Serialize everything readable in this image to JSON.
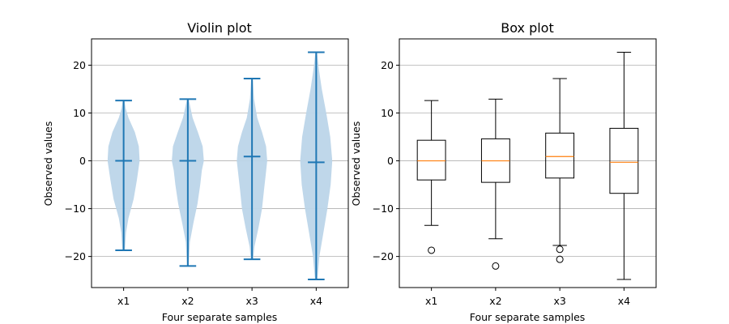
{
  "chart_data": [
    {
      "type": "violin",
      "title": "Violin plot",
      "xlabel": "Four separate samples",
      "ylabel": "Observed values",
      "categories": [
        "x1",
        "x2",
        "x3",
        "x4"
      ],
      "ylim": [
        -26.5,
        25.5
      ],
      "yticks": [
        -20,
        -10,
        0,
        10,
        20
      ],
      "ytick_labels": [
        "−20",
        "−10",
        "0",
        "10",
        "20"
      ],
      "grid": "y",
      "color": "#1f77b4",
      "body_color": "#bcd5e9",
      "series": [
        {
          "category": "x1",
          "min": -18.7,
          "max": 12.6,
          "median": 0.0,
          "density": [
            [
              -18.7,
              0.03
            ],
            [
              -15,
              0.06
            ],
            [
              -12,
              0.12
            ],
            [
              -8,
              0.25
            ],
            [
              -4,
              0.33
            ],
            [
              0,
              0.4
            ],
            [
              3,
              0.38
            ],
            [
              6,
              0.28
            ],
            [
              9,
              0.12
            ],
            [
              11,
              0.05
            ],
            [
              12.6,
              0.02
            ]
          ]
        },
        {
          "category": "x2",
          "min": -22.0,
          "max": 12.9,
          "median": 0.0,
          "density": [
            [
              -22,
              0.02
            ],
            [
              -17,
              0.05
            ],
            [
              -13,
              0.14
            ],
            [
              -9,
              0.24
            ],
            [
              -5,
              0.31
            ],
            [
              -2,
              0.35
            ],
            [
              0,
              0.4
            ],
            [
              3,
              0.37
            ],
            [
              6,
              0.25
            ],
            [
              9,
              0.12
            ],
            [
              12.9,
              0.02
            ]
          ]
        },
        {
          "category": "x3",
          "min": -20.6,
          "max": 17.2,
          "median": 0.9,
          "density": [
            [
              -20.6,
              0.03
            ],
            [
              -18,
              0.06
            ],
            [
              -14,
              0.16
            ],
            [
              -10,
              0.25
            ],
            [
              -6,
              0.3
            ],
            [
              -3,
              0.34
            ],
            [
              0,
              0.38
            ],
            [
              3,
              0.35
            ],
            [
              6,
              0.25
            ],
            [
              9,
              0.13
            ],
            [
              13,
              0.05
            ],
            [
              17.2,
              0.02
            ]
          ]
        },
        {
          "category": "x4",
          "min": -24.8,
          "max": 22.7,
          "median": -0.3,
          "density": [
            [
              -24.8,
              0.03
            ],
            [
              -20,
              0.08
            ],
            [
              -15,
              0.18
            ],
            [
              -10,
              0.28
            ],
            [
              -5,
              0.36
            ],
            [
              0,
              0.4
            ],
            [
              5,
              0.35
            ],
            [
              10,
              0.25
            ],
            [
              15,
              0.14
            ],
            [
              19,
              0.07
            ],
            [
              22.7,
              0.02
            ]
          ]
        }
      ]
    },
    {
      "type": "box",
      "title": "Box plot",
      "xlabel": "Four separate samples",
      "ylabel": "Observed values",
      "categories": [
        "x1",
        "x2",
        "x3",
        "x4"
      ],
      "ylim": [
        -26.5,
        25.5
      ],
      "yticks": [
        -20,
        -10,
        0,
        10,
        20
      ],
      "ytick_labels": [
        "−20",
        "−10",
        "0",
        "10",
        "20"
      ],
      "grid": "y",
      "median_color": "#ff7f0e",
      "series": [
        {
          "category": "x1",
          "whisker_low": -13.5,
          "q1": -4.0,
          "median": 0.0,
          "q3": 4.3,
          "whisker_high": 12.6,
          "outliers": [
            -18.7
          ]
        },
        {
          "category": "x2",
          "whisker_low": -16.3,
          "q1": -4.5,
          "median": 0.0,
          "q3": 4.6,
          "whisker_high": 12.9,
          "outliers": [
            -22.0
          ]
        },
        {
          "category": "x3",
          "whisker_low": -17.7,
          "q1": -3.6,
          "median": 0.9,
          "q3": 5.8,
          "whisker_high": 17.2,
          "outliers": [
            -18.5,
            -20.6
          ]
        },
        {
          "category": "x4",
          "whisker_low": -24.8,
          "q1": -6.8,
          "median": -0.3,
          "q3": 6.8,
          "whisker_high": 22.7,
          "outliers": []
        }
      ]
    }
  ]
}
